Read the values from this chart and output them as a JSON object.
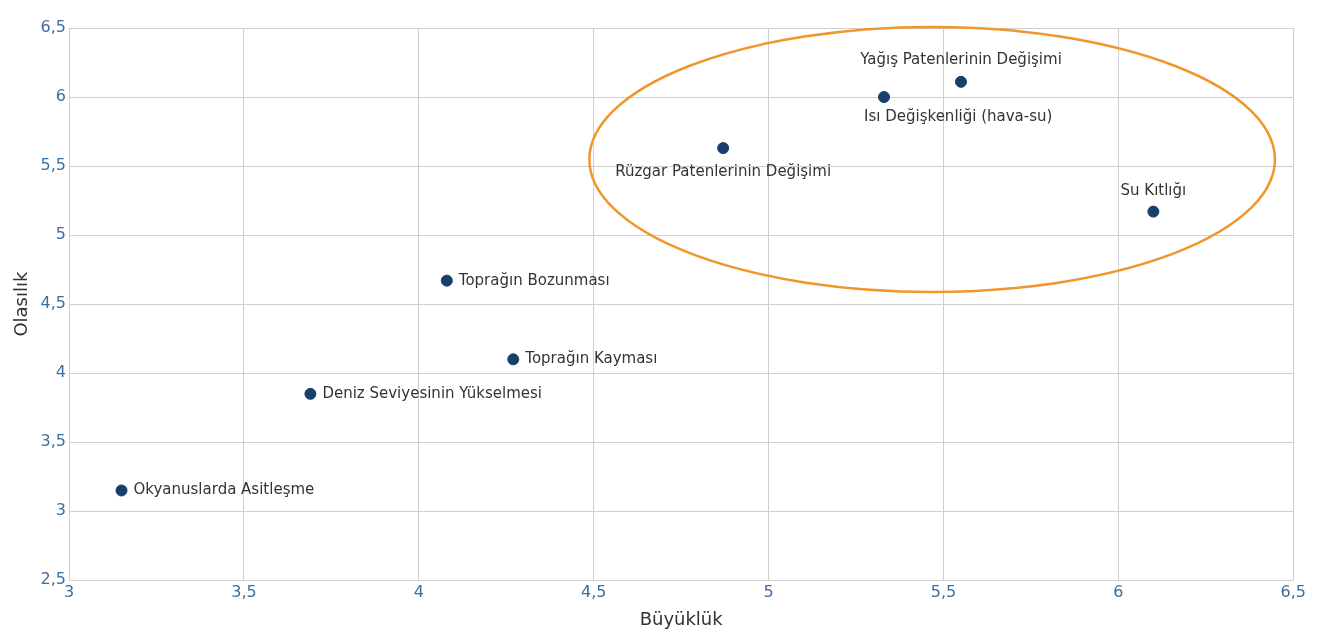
{
  "chart_data": {
    "type": "scatter",
    "xlabel": "Büyüklük",
    "ylabel": "Olasılık",
    "x": [
      3.15,
      3.69,
      4.08,
      4.27,
      4.87,
      5.33,
      5.55,
      6.1
    ],
    "values": [
      3.15,
      3.85,
      4.67,
      4.1,
      5.63,
      6.0,
      6.11,
      5.17
    ],
    "color": "#173f6b",
    "marker": "circle",
    "grid": true,
    "legend": false,
    "xlim": [
      3,
      6.5
    ],
    "ylim": [
      2.5,
      6.5
    ],
    "xticks": [
      3,
      {
        "value": 3.5,
        "label": "3,5"
      },
      4,
      {
        "value": 4.5,
        "label": "4,5"
      },
      5,
      {
        "value": 5.5,
        "label": "5,5"
      },
      6,
      {
        "value": 6.5,
        "label": "6,5"
      }
    ],
    "yticks": [
      {
        "value": 2.5,
        "label": "2,5"
      },
      3,
      {
        "value": 3.5,
        "label": "3,5"
      },
      4,
      {
        "value": 4.5,
        "label": "4,5"
      },
      5,
      {
        "value": 5.5,
        "label": "5,5"
      },
      6,
      {
        "value": 6.5,
        "label": "6,5"
      }
    ],
    "annotations": [
      {
        "text": "Okyanuslarda Asitleşme",
        "x": 3.15,
        "y": 3.15
      },
      {
        "text": "Deniz Seviyesinin Yükselmesi",
        "x": 3.69,
        "y": 3.85
      },
      {
        "text": "Toprağın Bozunması",
        "x": 4.08,
        "y": 4.67
      },
      {
        "text": "Toprağın Kayması",
        "x": 4.27,
        "y": 4.1
      },
      {
        "text": "Rüzgar Patenlerinin Değişimi",
        "x": 4.87,
        "y": 5.63
      },
      {
        "text": "Isı Değişkenliği (hava-su)",
        "x": 5.33,
        "y": 6.0
      },
      {
        "text": "Yağış Patenlerinin Değişimi",
        "x": 5.55,
        "y": 6.11
      },
      {
        "text": "Su Kıtlığı",
        "x": 6.1,
        "y": 5.17
      }
    ]
  }
}
